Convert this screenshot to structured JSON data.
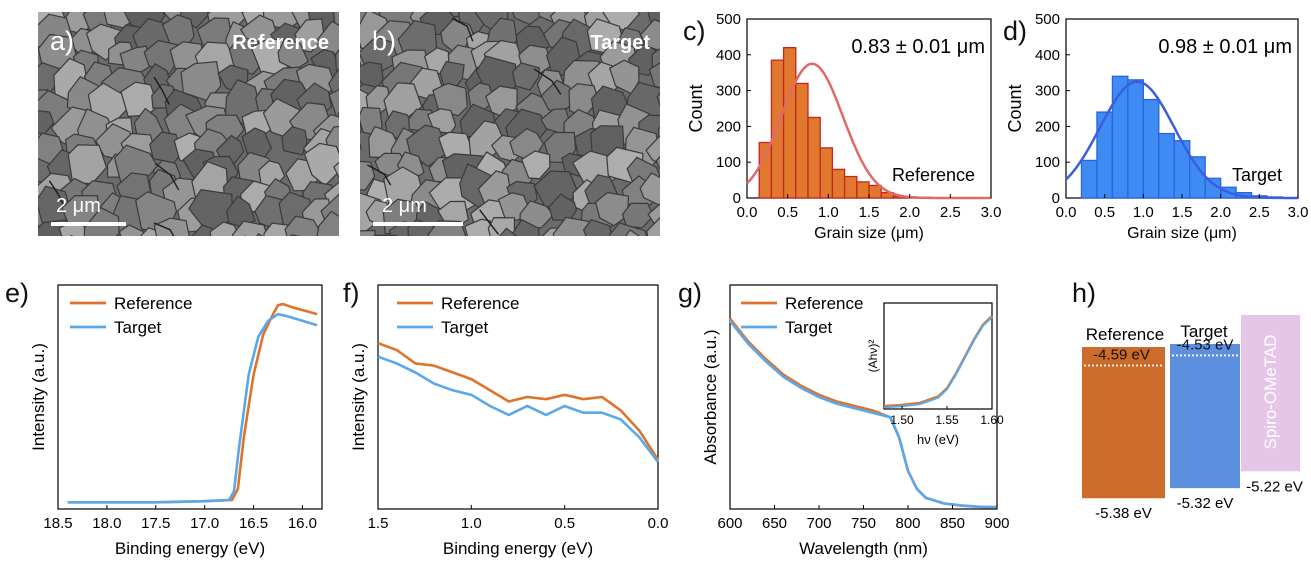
{
  "panels": {
    "a": {
      "letter": "a)",
      "label": "Reference",
      "scale": "2 μm"
    },
    "b": {
      "letter": "b)",
      "label": "Target",
      "scale": "2 μm"
    },
    "c": {
      "letter": "c)"
    },
    "d": {
      "letter": "d)"
    },
    "e": {
      "letter": "e)"
    },
    "f": {
      "letter": "f)"
    },
    "g": {
      "letter": "g)"
    },
    "h": {
      "letter": "h)"
    }
  },
  "colors": {
    "reference": "#e0732c",
    "target": "#5aa8ea",
    "hist_ref": "#e0782e",
    "hist_tgt": "#3e8bf3",
    "spiro": "#e6c6e8"
  },
  "chart_data": [
    {
      "id": "c",
      "type": "bar",
      "annotation": "0.83 ± 0.01 μm",
      "legend": "Reference",
      "xlabel": "Grain size (μm)",
      "ylabel": "Count",
      "xlim": [
        0,
        3.0
      ],
      "ylim": [
        0,
        500
      ],
      "xticks": [
        "0.0",
        "0.5",
        "1.0",
        "1.5",
        "2.0",
        "2.5",
        "3.0"
      ],
      "yticks": [
        "0",
        "100",
        "200",
        "300",
        "400",
        "500"
      ],
      "bin_width": 0.15,
      "bin_starts": [
        0.15,
        0.3,
        0.45,
        0.6,
        0.75,
        0.9,
        1.05,
        1.2,
        1.35,
        1.5,
        1.65,
        1.8,
        1.95,
        2.1
      ],
      "values": [
        155,
        385,
        420,
        320,
        225,
        140,
        80,
        60,
        45,
        35,
        15,
        5,
        3,
        2
      ],
      "fit": {
        "type": "gaussian",
        "peak_x": 0.8,
        "peak_y": 375,
        "sigma": 0.38
      }
    },
    {
      "id": "d",
      "type": "bar",
      "annotation": "0.98 ± 0.01 μm",
      "legend": "Target",
      "xlabel": "Grain size (μm)",
      "ylabel": "Count",
      "xlim": [
        0,
        3.0
      ],
      "ylim": [
        0,
        500
      ],
      "xticks": [
        "0.0",
        "0.5",
        "1.0",
        "1.5",
        "2.0",
        "2.5",
        "3.0"
      ],
      "yticks": [
        "0",
        "100",
        "200",
        "300",
        "400",
        "500"
      ],
      "bin_width": 0.2,
      "bin_starts": [
        0.2,
        0.4,
        0.6,
        0.8,
        1.0,
        1.2,
        1.4,
        1.6,
        1.8,
        2.0,
        2.2,
        2.4,
        2.6
      ],
      "values": [
        105,
        240,
        340,
        330,
        275,
        180,
        160,
        115,
        55,
        30,
        15,
        6,
        3
      ],
      "fit": {
        "type": "gaussian",
        "peak_x": 0.92,
        "peak_y": 325,
        "sigma": 0.48
      }
    },
    {
      "id": "e",
      "type": "line",
      "xlabel": "Binding energy (eV)",
      "ylabel": "Intensity (a.u.)",
      "xlim": [
        18.5,
        15.8
      ],
      "ylim": [
        0,
        100
      ],
      "xticks": [
        "18.5",
        "18.0",
        "17.5",
        "17.0",
        "16.5",
        "16.0"
      ],
      "series": [
        {
          "name": "Reference",
          "x": [
            18.4,
            17.5,
            17.0,
            16.72,
            16.66,
            16.6,
            16.5,
            16.4,
            16.3,
            16.25,
            16.2,
            16.1,
            15.85
          ],
          "y": [
            3,
            3,
            3.5,
            4,
            9,
            32,
            60,
            78,
            87,
            91,
            91.5,
            90,
            87
          ]
        },
        {
          "name": "Target",
          "x": [
            18.4,
            17.5,
            17.0,
            16.75,
            16.7,
            16.65,
            16.55,
            16.45,
            16.35,
            16.25,
            16.15,
            16.0,
            15.85
          ],
          "y": [
            3,
            3,
            3.5,
            4,
            8,
            27,
            60,
            77,
            84,
            87,
            86,
            84,
            82
          ]
        }
      ]
    },
    {
      "id": "f",
      "type": "line",
      "xlabel": "Binding energy (eV)",
      "ylabel": "Intensity (a.u.)",
      "xlim": [
        1.5,
        0.0
      ],
      "ylim": [
        0,
        100
      ],
      "xticks": [
        "1.5",
        "1.0",
        "0.5",
        "0.0"
      ],
      "series": [
        {
          "name": "Reference",
          "x": [
            1.5,
            1.4,
            1.3,
            1.2,
            1.1,
            1.0,
            0.9,
            0.8,
            0.7,
            0.6,
            0.5,
            0.4,
            0.3,
            0.2,
            0.1,
            0.0
          ],
          "y": [
            74,
            71,
            65,
            64,
            61,
            58,
            53,
            48,
            50,
            49,
            51,
            49,
            50,
            44,
            35,
            22
          ]
        },
        {
          "name": "Target",
          "x": [
            1.5,
            1.4,
            1.3,
            1.2,
            1.1,
            1.0,
            0.9,
            0.8,
            0.7,
            0.6,
            0.5,
            0.4,
            0.3,
            0.2,
            0.1,
            0.0
          ],
          "y": [
            68,
            65,
            61,
            56,
            53,
            51,
            46,
            42,
            46,
            42,
            46,
            43,
            43,
            40,
            32,
            21
          ]
        }
      ]
    },
    {
      "id": "g",
      "type": "line",
      "xlabel": "Wavelength (nm)",
      "ylabel": "Absorbance (a.u.)",
      "xlim": [
        600,
        900
      ],
      "ylim": [
        0,
        100
      ],
      "xticks": [
        "600",
        "650",
        "700",
        "750",
        "800",
        "850",
        "900"
      ],
      "series": [
        {
          "name": "Reference",
          "x": [
            600,
            620,
            640,
            660,
            680,
            700,
            720,
            740,
            760,
            780,
            790,
            800,
            810,
            820,
            840,
            860,
            880,
            900
          ],
          "y": [
            85,
            75,
            67,
            60,
            55,
            51,
            48,
            46,
            44,
            41,
            32,
            17,
            9,
            5,
            2.5,
            1.5,
            1,
            0.8
          ]
        },
        {
          "name": "Target",
          "x": [
            600,
            620,
            640,
            660,
            680,
            700,
            720,
            740,
            760,
            780,
            790,
            800,
            810,
            820,
            840,
            860,
            880,
            900
          ],
          "y": [
            84,
            74,
            66,
            59,
            54,
            50,
            47,
            45,
            43,
            41,
            32,
            17,
            9,
            5,
            2.5,
            1.5,
            1,
            0.8
          ]
        }
      ],
      "inset": {
        "xlabel": "hν (eV)",
        "ylabel": "(Ahν)²",
        "xlim": [
          1.48,
          1.6
        ],
        "ylim": [
          0,
          1
        ],
        "xticks": [
          "1.50",
          "1.55",
          "1.60"
        ],
        "x": [
          1.48,
          1.5,
          1.52,
          1.54,
          1.55,
          1.56,
          1.57,
          1.58,
          1.59,
          1.6
        ],
        "y": [
          0.03,
          0.04,
          0.06,
          0.12,
          0.2,
          0.34,
          0.5,
          0.66,
          0.8,
          0.88
        ]
      }
    },
    {
      "id": "h",
      "type": "bar",
      "title": "",
      "categories": [
        "Reference",
        "Target",
        "Spiro-OMeTAD"
      ],
      "vbm": [
        -5.38,
        -5.32,
        -5.22
      ],
      "fermi": [
        -4.59,
        -4.53,
        null
      ],
      "labels": {
        "fermi": [
          "-4.59 eV",
          "-4.53 eV",
          ""
        ],
        "vbm": [
          "-5.38 eV",
          "-5.32 eV",
          "-5.22 eV"
        ]
      }
    }
  ]
}
